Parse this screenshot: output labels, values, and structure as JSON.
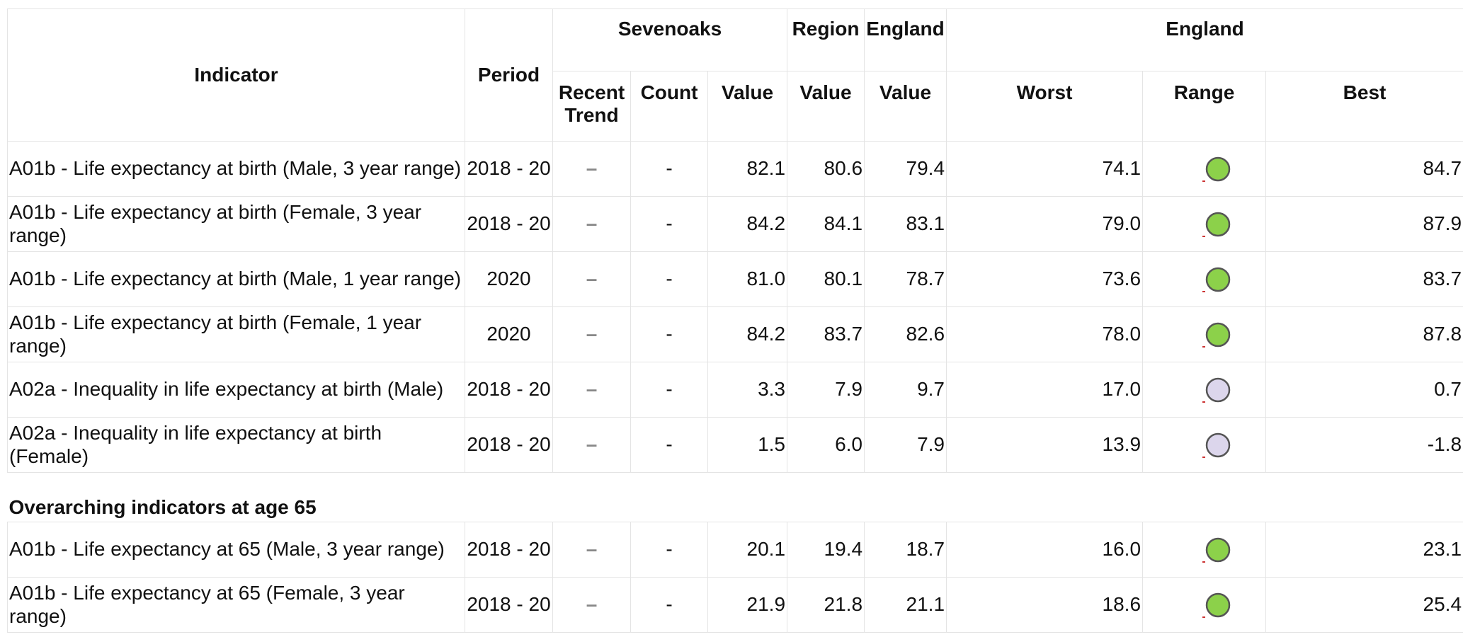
{
  "header": {
    "indicator": "Indicator",
    "period": "Period",
    "area": "Sevenoaks",
    "region": "Region",
    "england": "England",
    "england_range": "England",
    "recent_trend": "Recent Trend",
    "count": "Count",
    "value": "Value",
    "region_value": "Value",
    "england_value": "Value",
    "worst": "Worst",
    "range": "Range",
    "best": "Best"
  },
  "sections": [
    {
      "rows": [
        {
          "indicator": "A01b - Life expectancy at birth (Male, 3 year range)",
          "period": "2018 - 20",
          "trend": "–",
          "count": "-",
          "value": "82.1",
          "region": "80.6",
          "england": "79.4",
          "worst": "74.1",
          "best": "84.7",
          "marker_color": "#8cd14a"
        },
        {
          "indicator": "A01b - Life expectancy at birth (Female, 3 year range)",
          "period": "2018 - 20",
          "trend": "–",
          "count": "-",
          "value": "84.2",
          "region": "84.1",
          "england": "83.1",
          "worst": "79.0",
          "best": "87.9",
          "marker_color": "#8cd14a"
        },
        {
          "indicator": "A01b - Life expectancy at birth (Male, 1 year range)",
          "period": "2020",
          "trend": "–",
          "count": "-",
          "value": "81.0",
          "region": "80.1",
          "england": "78.7",
          "worst": "73.6",
          "best": "83.7",
          "marker_color": "#8cd14a"
        },
        {
          "indicator": "A01b - Life expectancy at birth (Female, 1 year range)",
          "period": "2020",
          "trend": "–",
          "count": "-",
          "value": "84.2",
          "region": "83.7",
          "england": "82.6",
          "worst": "78.0",
          "best": "87.8",
          "marker_color": "#8cd14a"
        },
        {
          "indicator": "A02a - Inequality in life expectancy at birth (Male)",
          "period": "2018 - 20",
          "trend": "–",
          "count": "-",
          "value": "3.3",
          "region": "7.9",
          "england": "9.7",
          "worst": "17.0",
          "best": "0.7",
          "marker_color": "#dcd6ec"
        },
        {
          "indicator": "A02a - Inequality in life expectancy at birth (Female)",
          "period": "2018 - 20",
          "trend": "–",
          "count": "-",
          "value": "1.5",
          "region": "6.0",
          "england": "7.9",
          "worst": "13.9",
          "best": "-1.8",
          "marker_color": "#dcd6ec"
        }
      ]
    },
    {
      "title": "Overarching indicators at age 65",
      "rows": [
        {
          "indicator": "A01b - Life expectancy at 65 (Male, 3 year range)",
          "period": "2018 - 20",
          "trend": "–",
          "count": "-",
          "value": "20.1",
          "region": "19.4",
          "england": "18.7",
          "worst": "16.0",
          "best": "23.1",
          "marker_color": "#8cd14a"
        },
        {
          "indicator": "A01b - Life expectancy at 65 (Female, 3 year range)",
          "period": "2018 - 20",
          "trend": "–",
          "count": "-",
          "value": "21.9",
          "region": "21.8",
          "england": "21.1",
          "worst": "18.6",
          "best": "25.4",
          "marker_color": "#8cd14a"
        }
      ]
    }
  ]
}
